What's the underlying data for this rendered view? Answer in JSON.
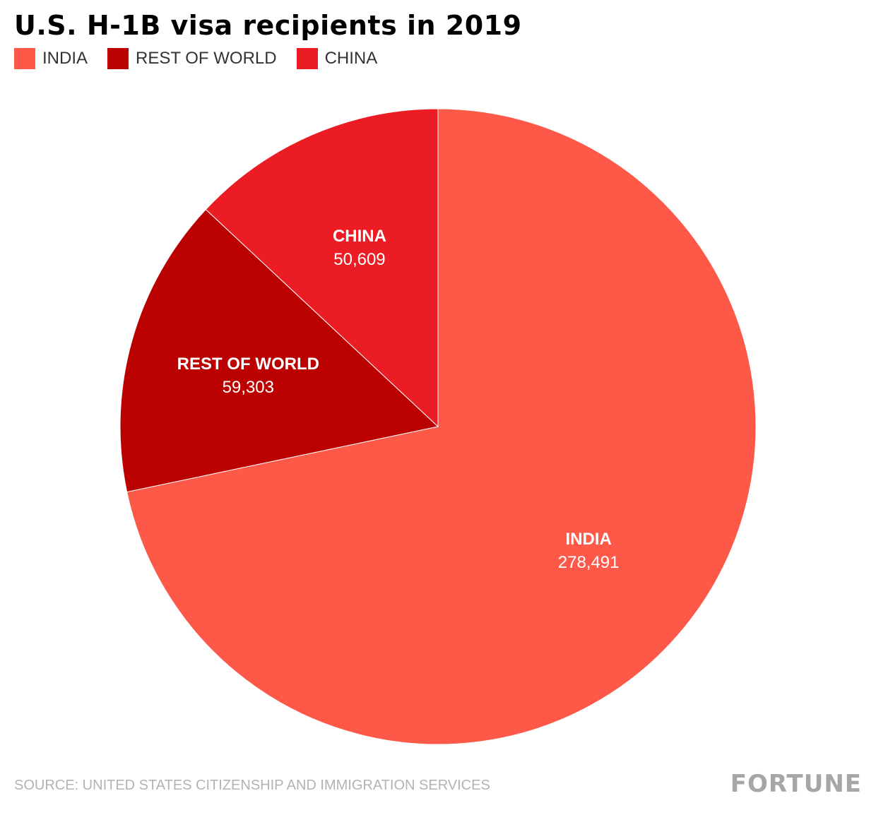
{
  "chart_data": {
    "type": "pie",
    "title": "U.S. H-1B visa recipients in 2019",
    "categories": [
      "INDIA",
      "REST OF WORLD",
      "CHINA"
    ],
    "values": [
      278491,
      59303,
      50609
    ],
    "value_labels": [
      "278,491",
      "59,303",
      "50,609"
    ],
    "colors": [
      "#fe5849",
      "#bb0000",
      "#eb1c24"
    ],
    "legend_position": "top-left"
  },
  "footer": {
    "source": "SOURCE: UNITED STATES CITIZENSHIP AND IMMIGRATION SERVICES",
    "brand": "FORTUNE"
  }
}
